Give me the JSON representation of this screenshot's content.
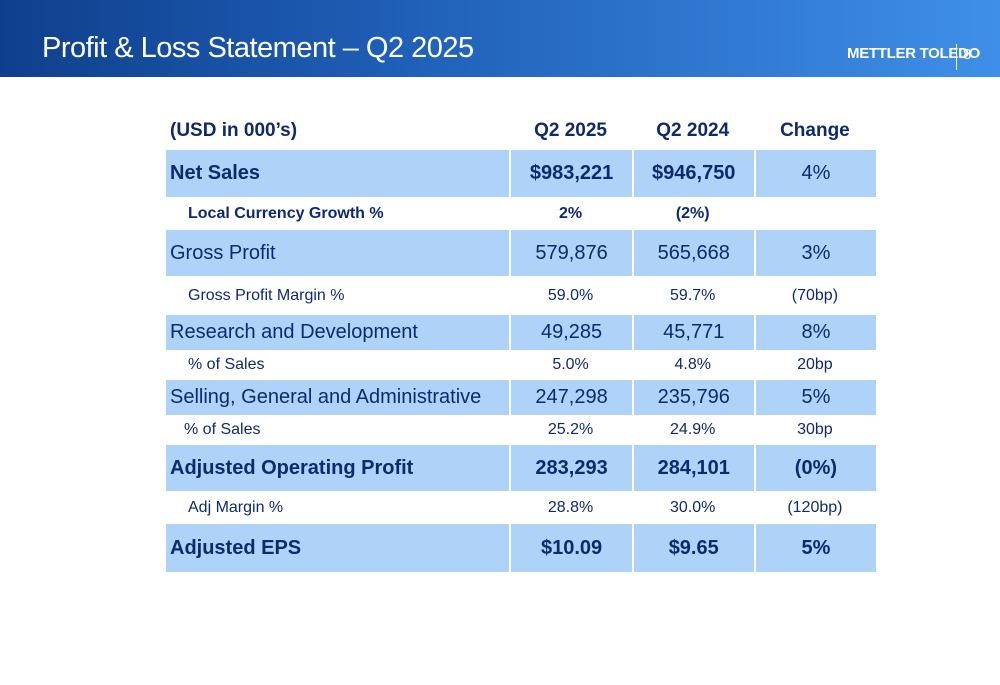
{
  "header": {
    "title": "Profit & Loss Statement – Q2 2025",
    "brand": "METTLER TOLEDO",
    "page_number": "8"
  },
  "table": {
    "columns": [
      "(USD in 000’s)",
      "Q2 2025",
      "Q2 2024",
      "Change"
    ],
    "rows": [
      {
        "label": "Net Sales",
        "q2_2025": "$983,221",
        "q2_2024": "$946,750",
        "change": "4%"
      },
      {
        "label": "Local Currency Growth %",
        "q2_2025": "2%",
        "q2_2024": "(2%)",
        "change": ""
      },
      {
        "label": "Gross Profit",
        "q2_2025": "579,876",
        "q2_2024": "565,668",
        "change": "3%"
      },
      {
        "label": "Gross Profit Margin %",
        "q2_2025": "59.0%",
        "q2_2024": "59.7%",
        "change": "(70bp)"
      },
      {
        "label": "Research and Development",
        "q2_2025": "49,285",
        "q2_2024": "45,771",
        "change": "8%"
      },
      {
        "label": "% of Sales",
        "q2_2025": "5.0%",
        "q2_2024": "4.8%",
        "change": "20bp"
      },
      {
        "label": "Selling, General and Administrative",
        "q2_2025": "247,298",
        "q2_2024": "235,796",
        "change": "5%"
      },
      {
        "label": "% of Sales",
        "q2_2025": "25.2%",
        "q2_2024": "24.9%",
        "change": "30bp"
      },
      {
        "label": "Adjusted Operating Profit",
        "q2_2025": "283,293",
        "q2_2024": "284,101",
        "change": "(0%)"
      },
      {
        "label": "Adj Margin %",
        "q2_2025": "28.8%",
        "q2_2024": "30.0%",
        "change": "(120bp)"
      },
      {
        "label": "Adjusted EPS",
        "q2_2025": "$10.09",
        "q2_2024": "$9.65",
        "change": "5%"
      }
    ]
  },
  "colors": {
    "header_start": "#0f3f8c",
    "header_end": "#3f8fe8",
    "row_band": "#aed2f8",
    "text": "#0e2a6e"
  }
}
